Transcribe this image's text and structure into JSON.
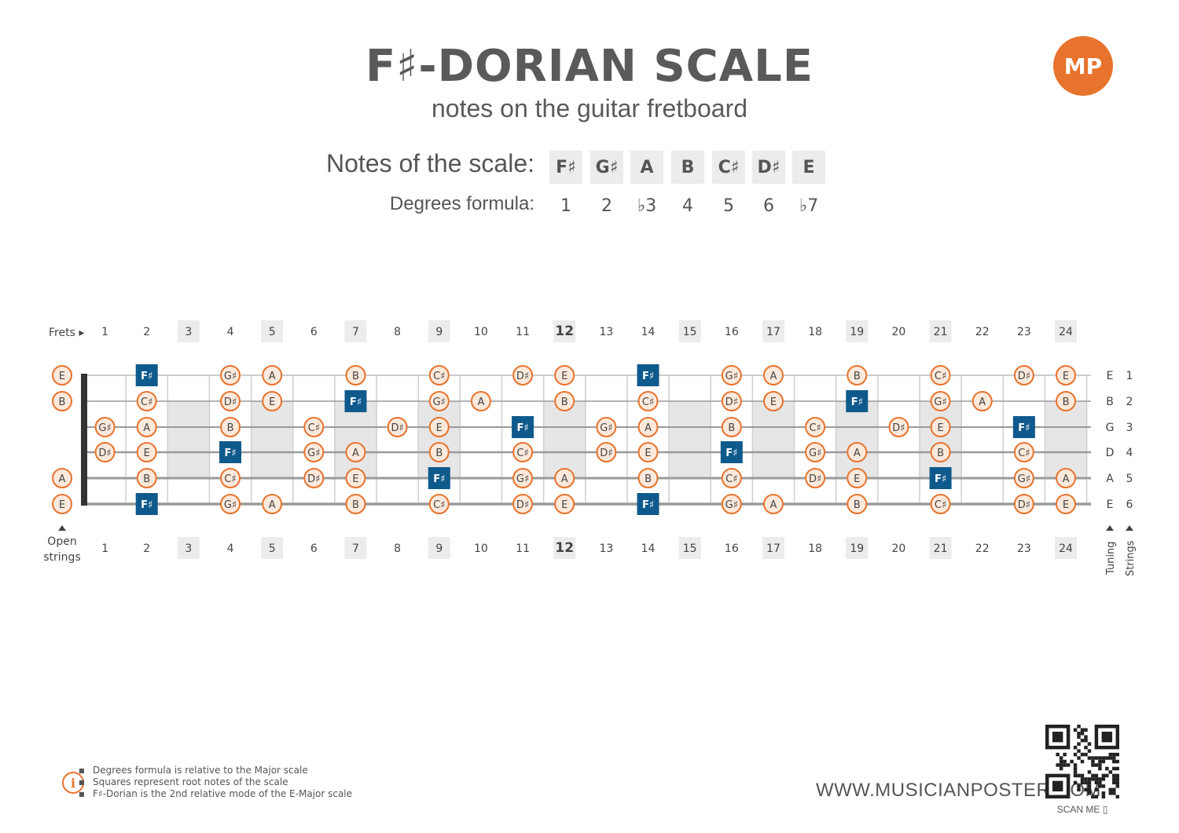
{
  "header": {
    "title": "F♯-DORIAN SCALE",
    "subtitle": "notes on the guitar fretboard",
    "logo_text": "MP"
  },
  "scale": {
    "notes_label": "Notes of the scale:",
    "degrees_label": "Degrees formula:",
    "notes": [
      "F♯",
      "G♯",
      "A",
      "B",
      "C♯",
      "D♯",
      "E"
    ],
    "degrees": [
      "1",
      "2",
      "♭3",
      "4",
      "5",
      "6",
      "♭7"
    ]
  },
  "fretboard": {
    "frets_label": "Frets ▸",
    "open_strings_label": "Open strings",
    "tuning_label": "Tuning",
    "strings_label": "Strings",
    "fret_numbers": [
      "1",
      "2",
      "3",
      "4",
      "5",
      "6",
      "7",
      "8",
      "9",
      "10",
      "11",
      "12",
      "13",
      "14",
      "15",
      "16",
      "17",
      "18",
      "19",
      "20",
      "21",
      "22",
      "23",
      "24"
    ],
    "marked_frets": [
      3,
      5,
      7,
      9,
      12,
      15,
      17,
      19,
      21,
      24
    ],
    "inlay_frets": [
      3,
      5,
      7,
      9,
      12,
      15,
      17,
      19,
      21,
      24
    ],
    "root_note": "F♯",
    "strings": [
      {
        "name": "E",
        "number": "1",
        "open": "E",
        "frets": [
          "",
          "F♯",
          "",
          "G♯",
          "A",
          "",
          "B",
          "",
          "C♯",
          "",
          "D♯",
          "E",
          "",
          "F♯",
          "",
          "G♯",
          "A",
          "",
          "B",
          "",
          "C♯",
          "",
          "D♯",
          "E"
        ]
      },
      {
        "name": "B",
        "number": "2",
        "open": "B",
        "frets": [
          "",
          "C♯",
          "",
          "D♯",
          "E",
          "",
          "F♯",
          "",
          "G♯",
          "A",
          "",
          "B",
          "",
          "C♯",
          "",
          "D♯",
          "E",
          "",
          "F♯",
          "",
          "G♯",
          "A",
          "",
          "B"
        ]
      },
      {
        "name": "G",
        "number": "3",
        "open": "",
        "frets": [
          "G♯",
          "A",
          "",
          "B",
          "",
          "C♯",
          "",
          "D♯",
          "E",
          "",
          "F♯",
          "",
          "G♯",
          "A",
          "",
          "B",
          "",
          "C♯",
          "",
          "D♯",
          "E",
          "",
          "F♯",
          ""
        ]
      },
      {
        "name": "D",
        "number": "4",
        "open": "",
        "frets": [
          "D♯",
          "E",
          "",
          "F♯",
          "",
          "G♯",
          "A",
          "",
          "B",
          "",
          "C♯",
          "",
          "D♯",
          "E",
          "",
          "F♯",
          "",
          "G♯",
          "A",
          "",
          "B",
          "",
          "C♯",
          ""
        ]
      },
      {
        "name": "A",
        "number": "5",
        "open": "A",
        "frets": [
          "",
          "B",
          "",
          "C♯",
          "",
          "D♯",
          "E",
          "",
          "F♯",
          "",
          "G♯",
          "A",
          "",
          "B",
          "",
          "C♯",
          "",
          "D♯",
          "E",
          "",
          "F♯",
          "",
          "G♯",
          "A"
        ]
      },
      {
        "name": "E",
        "number": "6",
        "open": "E",
        "frets": [
          "",
          "F♯",
          "",
          "G♯",
          "A",
          "",
          "B",
          "",
          "C♯",
          "",
          "D♯",
          "E",
          "",
          "F♯",
          "",
          "G♯",
          "A",
          "",
          "B",
          "",
          "C♯",
          "",
          "D♯",
          "E"
        ]
      }
    ]
  },
  "footer": {
    "notes": [
      "Degrees formula is relative to the Major scale",
      "Squares represent root notes of the scale",
      "F♯-Dorian is the 2nd relative mode of the E-Major scale"
    ],
    "website": "WWW.MUSICIANPOSTER.COM",
    "scan_label": "SCAN ME"
  },
  "colors": {
    "accent": "#e8732d",
    "root": "#0f5a8c",
    "marker_bg": "#ececec",
    "string": "#9a9a9a",
    "fret": "#cfcfcf",
    "nut": "#333333"
  }
}
